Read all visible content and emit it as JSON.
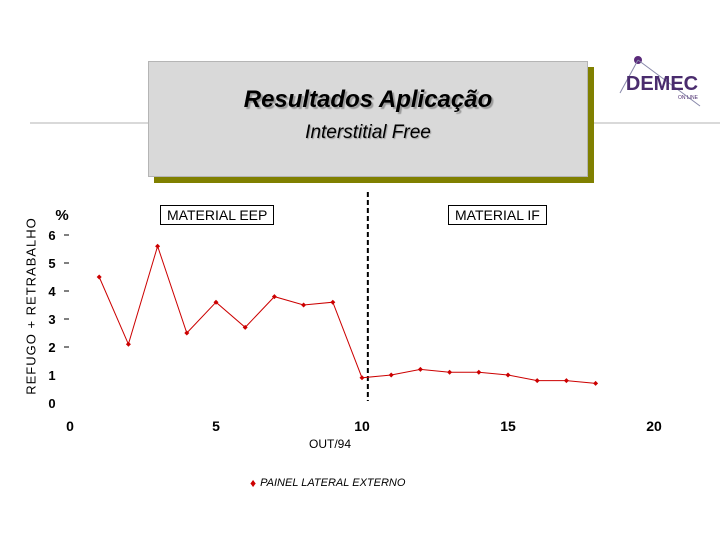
{
  "slide": {
    "title": "Resultados Aplicação",
    "subtitle": "Interstitial Free",
    "logo_text": "DEMEC",
    "logo_subtext": "ON LINE"
  },
  "chart_data": {
    "type": "line",
    "ylabel": "REFUGO + RETRABALHO",
    "yunit": "%",
    "xlabel": "OUT/94",
    "xlim": [
      0,
      20
    ],
    "ylim": [
      0,
      6
    ],
    "xticks": [
      0,
      5,
      10,
      15,
      20
    ],
    "yticks": [
      0,
      1,
      2,
      3,
      4,
      5,
      6
    ],
    "series": [
      {
        "name": "PAINEL LATERAL EXTERNO",
        "color": "#cc0000",
        "x": [
          1,
          2,
          3,
          4,
          5,
          6,
          7,
          8,
          9,
          10,
          11,
          12,
          13,
          14,
          15,
          16,
          17,
          18
        ],
        "y": [
          4.5,
          2.1,
          5.6,
          2.5,
          3.6,
          2.7,
          3.8,
          3.5,
          3.6,
          0.9,
          1.0,
          1.2,
          1.1,
          1.1,
          1.0,
          0.8,
          0.8,
          0.7
        ]
      }
    ],
    "regions": [
      {
        "label": "MATERIAL EEP"
      },
      {
        "label": "MATERIAL IF"
      }
    ],
    "divider_x": 10.2,
    "grid": false,
    "legend_position": "bottom-center"
  }
}
